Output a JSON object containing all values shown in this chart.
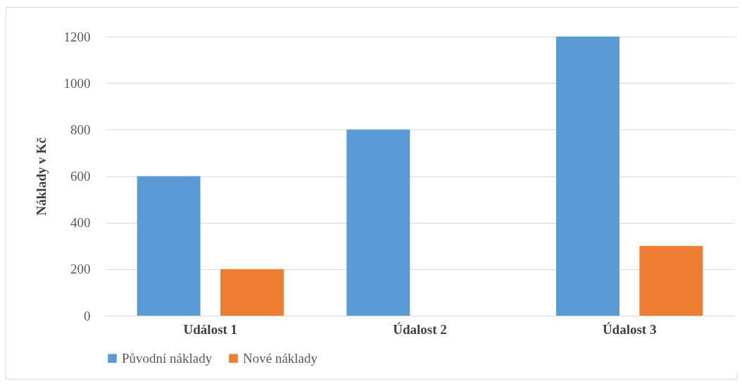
{
  "chart_data": {
    "type": "bar",
    "ylabel": "Náklady v Kč",
    "categories": [
      "Událost 1",
      "Údalost 2",
      "Údalost 3"
    ],
    "series": [
      {
        "name": "Původní náklady",
        "color": "#5b9bd5",
        "values": [
          600,
          800,
          1200
        ]
      },
      {
        "name": "Nové náklady",
        "color": "#ed7d31",
        "values": [
          200,
          0,
          300
        ]
      }
    ],
    "ylim": [
      0,
      1200
    ],
    "yticks": [
      0,
      200,
      400,
      600,
      800,
      1000,
      1200
    ],
    "grid": "y",
    "legend": "bottom"
  }
}
